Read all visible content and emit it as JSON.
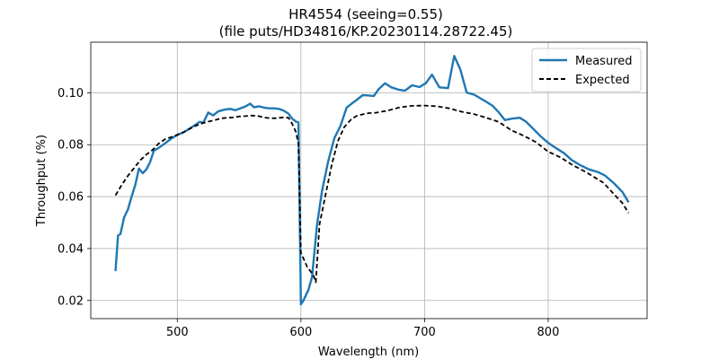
{
  "chart_data": {
    "type": "line",
    "title": "HR4554 (seeing=0.55)",
    "subtitle": "(file puts/HD34816/KP.20230114.28722.45)",
    "xlabel": "Wavelength (nm)",
    "ylabel": "Throughput (%)",
    "xlim": [
      430,
      880
    ],
    "ylim": [
      0.013,
      0.1195
    ],
    "grid": true,
    "legend_position": "upper right",
    "x_ticks": [
      500,
      600,
      700,
      800
    ],
    "y_ticks": [
      0.02,
      0.04,
      0.06,
      0.08,
      0.1
    ],
    "x_tick_labels": [
      "500",
      "600",
      "700",
      "800"
    ],
    "y_tick_labels": [
      "0.02",
      "0.04",
      "0.06",
      "0.08",
      "0.10"
    ],
    "series": [
      {
        "name": "Measured",
        "color": "#1f77b4",
        "style": "solid",
        "x": [
          450,
          452,
          454,
          457,
          460,
          463,
          466,
          469,
          472,
          475,
          478,
          481,
          485,
          490,
          495,
          500,
          505,
          510,
          515,
          518,
          521,
          525,
          529,
          533,
          538,
          543,
          547,
          551,
          555,
          559,
          562,
          566,
          570,
          574,
          578,
          582,
          586,
          590,
          593,
          596,
          598,
          600,
          602,
          606,
          609,
          613,
          617,
          622,
          627,
          632,
          637,
          641,
          645,
          650,
          654,
          659,
          663,
          668,
          673,
          679,
          684,
          690,
          696,
          701,
          706,
          712,
          719,
          724,
          729,
          734,
          740,
          744,
          750,
          755,
          760,
          765,
          770,
          777,
          782,
          788,
          794,
          800,
          806,
          813,
          819,
          826,
          833,
          840,
          846,
          853,
          860,
          865
        ],
        "values": [
          0.0313,
          0.045,
          0.0456,
          0.052,
          0.055,
          0.06,
          0.0645,
          0.0708,
          0.069,
          0.0705,
          0.0733,
          0.0777,
          0.0788,
          0.0805,
          0.0823,
          0.0838,
          0.0848,
          0.0862,
          0.0878,
          0.0888,
          0.0885,
          0.0924,
          0.0913,
          0.0928,
          0.0935,
          0.0938,
          0.0933,
          0.094,
          0.0947,
          0.0958,
          0.0944,
          0.0948,
          0.0943,
          0.094,
          0.094,
          0.0938,
          0.0931,
          0.0919,
          0.09,
          0.0889,
          0.0886,
          0.0185,
          0.02,
          0.024,
          0.029,
          0.049,
          0.062,
          0.0735,
          0.0825,
          0.0873,
          0.0943,
          0.0958,
          0.0972,
          0.0991,
          0.099,
          0.0988,
          0.1015,
          0.1037,
          0.1021,
          0.1012,
          0.1008,
          0.1029,
          0.1022,
          0.1037,
          0.107,
          0.1021,
          0.1018,
          0.1142,
          0.1089,
          0.1001,
          0.0993,
          0.0982,
          0.0965,
          0.095,
          0.0925,
          0.0895,
          0.09,
          0.0904,
          0.0889,
          0.0861,
          0.0832,
          0.0807,
          0.0788,
          0.0767,
          0.0741,
          0.0721,
          0.0705,
          0.0695,
          0.0681,
          0.0652,
          0.0618,
          0.0578
        ]
      },
      {
        "name": "Expected",
        "color": "#000000",
        "style": "dashed",
        "x": [
          450,
          455,
          460,
          465,
          470,
          475,
          480,
          485,
          490,
          495,
          500,
          505,
          510,
          515,
          520,
          525,
          530,
          535,
          540,
          545,
          550,
          555,
          560,
          565,
          570,
          575,
          580,
          585,
          590,
          593,
          596,
          598,
          600,
          605,
          610,
          612,
          615,
          620,
          625,
          630,
          635,
          640,
          645,
          650,
          655,
          660,
          670,
          680,
          690,
          700,
          710,
          720,
          730,
          740,
          750,
          760,
          770,
          780,
          790,
          800,
          810,
          820,
          830,
          840,
          845,
          850,
          860,
          865
        ],
        "values": [
          0.0605,
          0.0645,
          0.068,
          0.071,
          0.074,
          0.0762,
          0.078,
          0.0805,
          0.0821,
          0.0829,
          0.0838,
          0.0848,
          0.0861,
          0.0873,
          0.0882,
          0.0889,
          0.0894,
          0.0901,
          0.0904,
          0.0905,
          0.0909,
          0.091,
          0.0912,
          0.0911,
          0.0905,
          0.0902,
          0.0902,
          0.0905,
          0.0904,
          0.088,
          0.0849,
          0.0802,
          0.0384,
          0.033,
          0.0298,
          0.027,
          0.0493,
          0.061,
          0.0724,
          0.0815,
          0.0868,
          0.0895,
          0.0911,
          0.0917,
          0.0922,
          0.0923,
          0.0931,
          0.0944,
          0.095,
          0.0951,
          0.0948,
          0.094,
          0.0927,
          0.0918,
          0.0904,
          0.0888,
          0.0856,
          0.0835,
          0.081,
          0.0773,
          0.0751,
          0.0721,
          0.0696,
          0.0667,
          0.0652,
          0.0626,
          0.0575,
          0.0537
        ]
      }
    ]
  }
}
